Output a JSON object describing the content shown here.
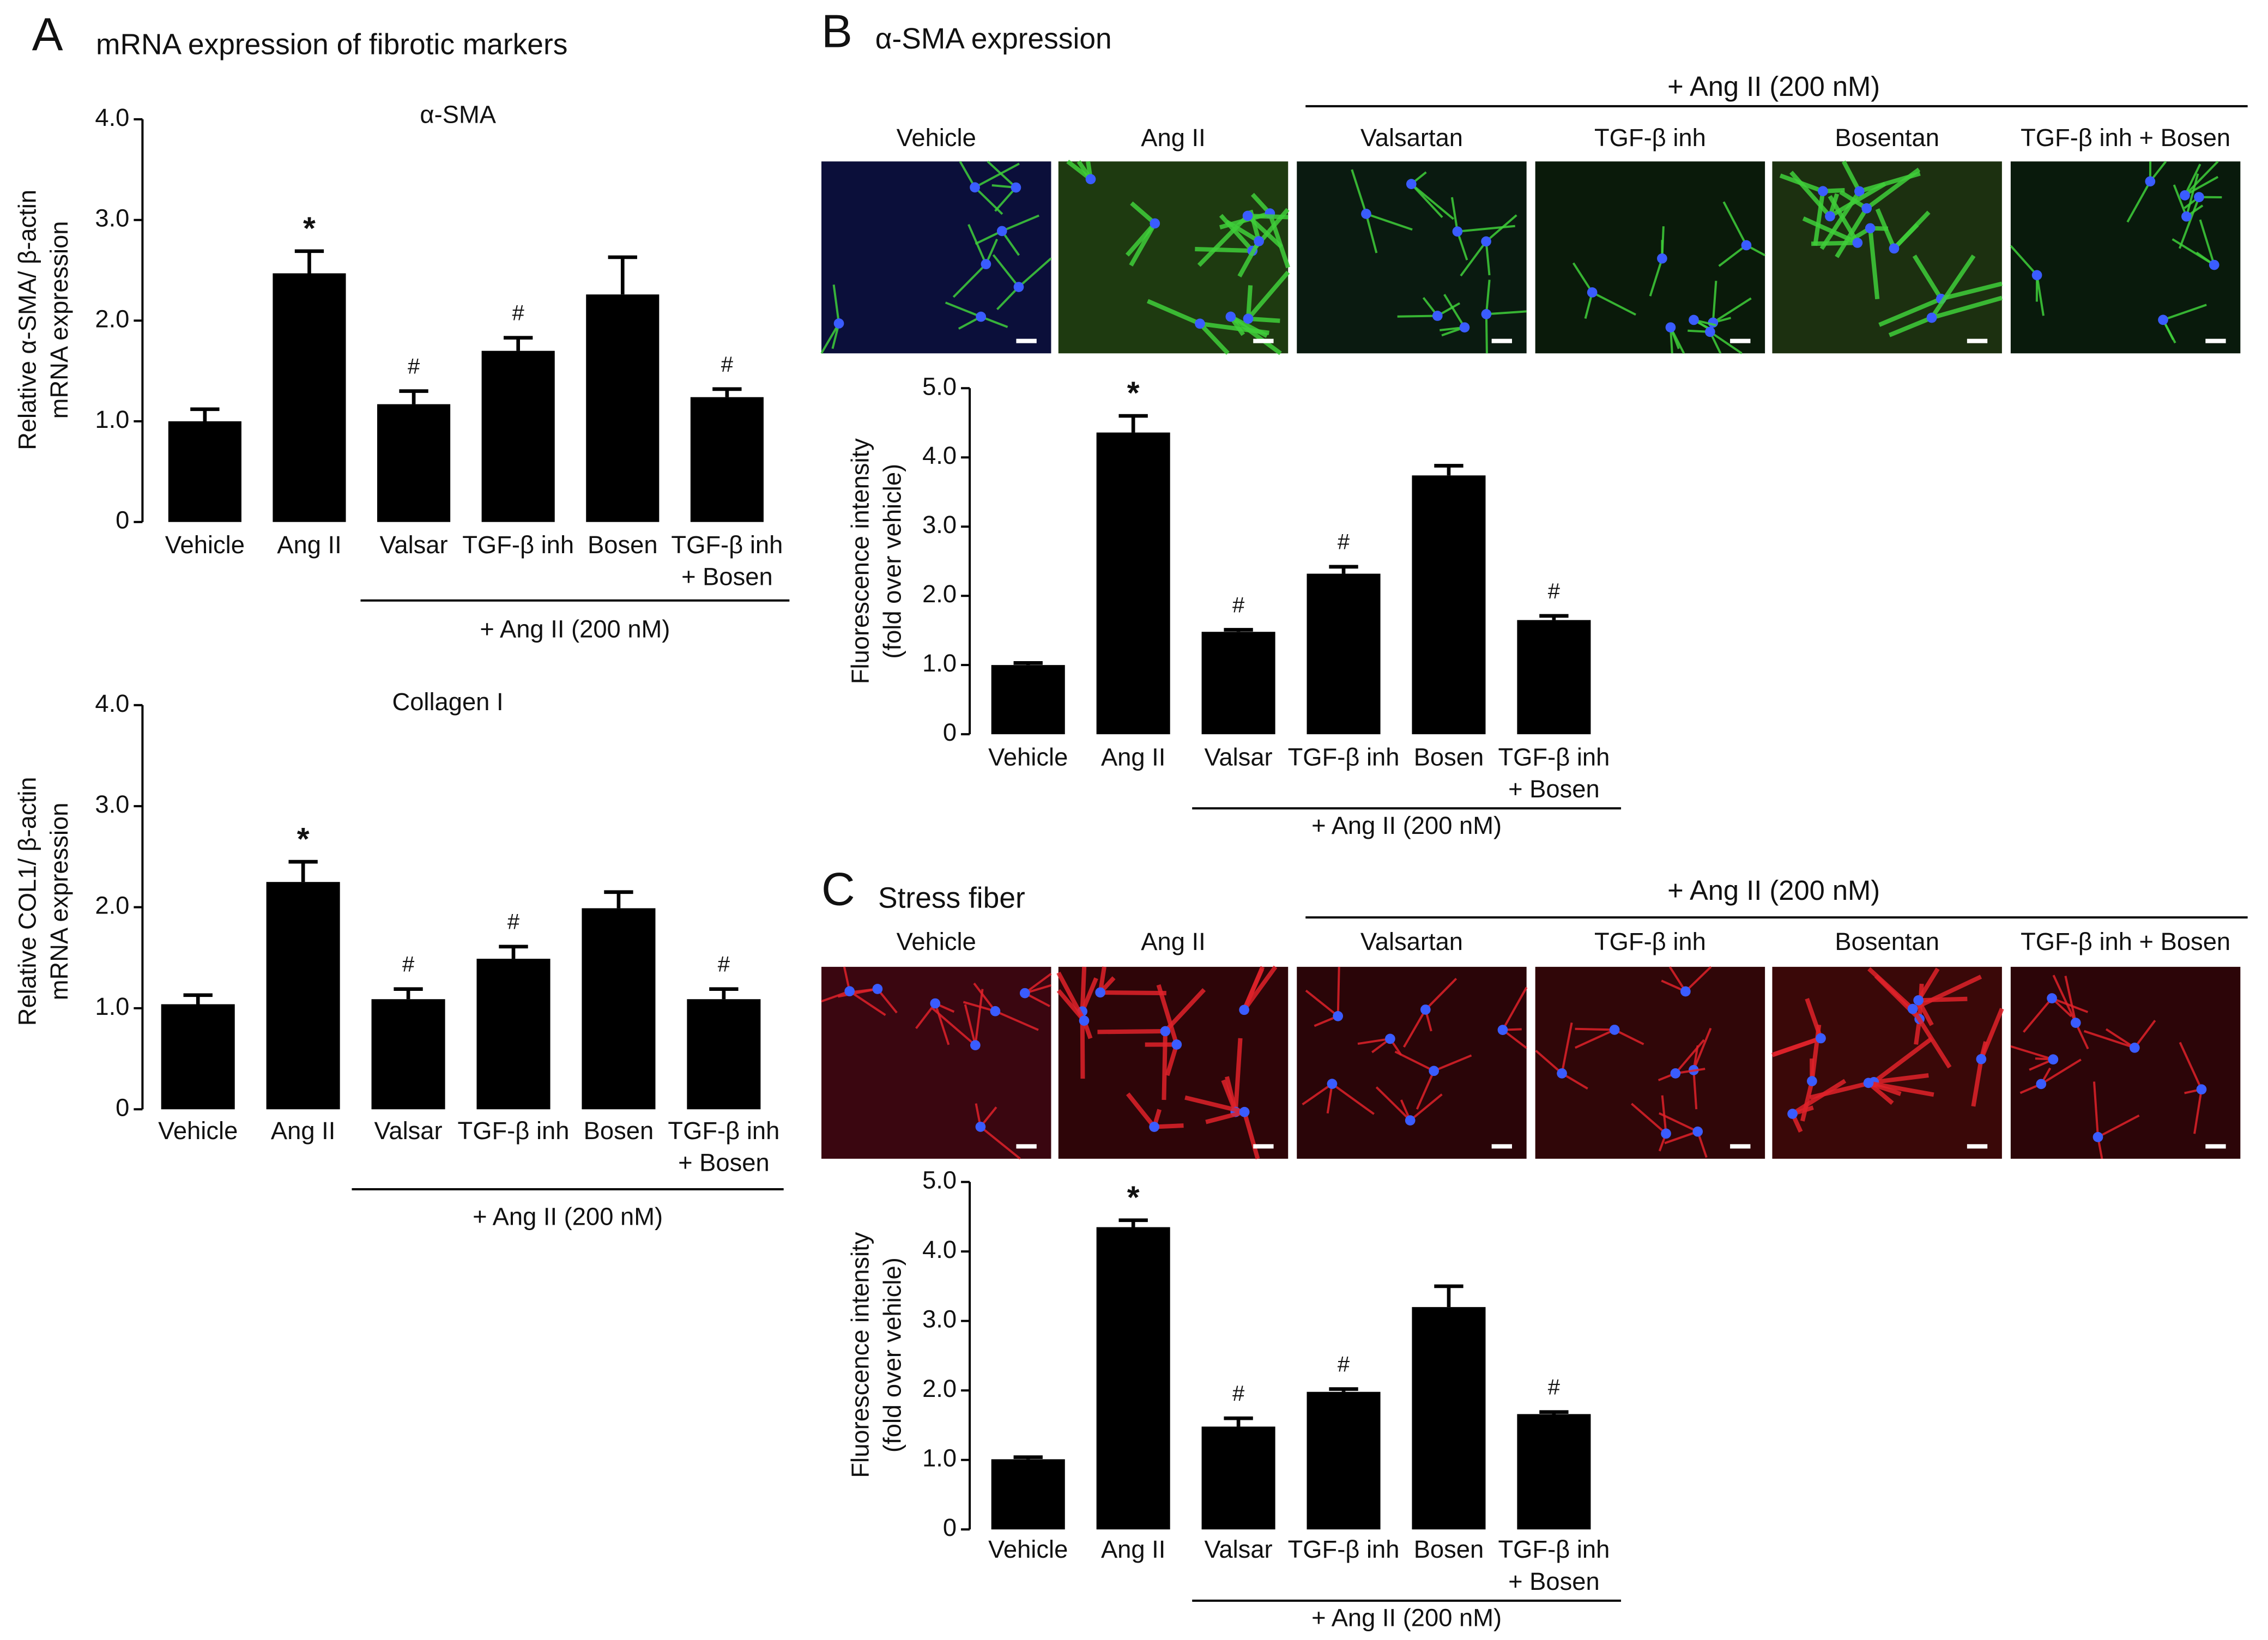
{
  "figure": {
    "panels": [
      {
        "letter": "A",
        "title": "mRNA expression of fibrotic markers"
      },
      {
        "letter": "B",
        "title": "α-SMA expression",
        "header": "+ Ang II (200 nM)",
        "image_labels": [
          "Vehicle",
          "Ang II",
          "Valsartan",
          "TGF-β inh",
          "Bosentan",
          "TGF-β inh + Bosen"
        ]
      },
      {
        "letter": "C",
        "title": "Stress fiber",
        "header": "+ Ang II (200 nM)",
        "image_labels": [
          "Vehicle",
          "Ang II",
          "Valsartan",
          "TGF-β inh",
          "Bosentan",
          "TGF-β inh + Bosen"
        ]
      }
    ]
  },
  "chart_data": [
    {
      "type": "bar",
      "title": "α-SMA",
      "y_label": [
        "Relative α-SMA/ β-actin",
        "mRNA expression"
      ],
      "categories": [
        [
          "Vehicle"
        ],
        [
          "Ang II"
        ],
        [
          "Valsar"
        ],
        [
          "TGF-β inh"
        ],
        [
          "Bosen"
        ],
        [
          "TGF-β inh",
          "+ Bosen"
        ]
      ],
      "group_label": "+ Ang II (200 nM)",
      "values": [
        1.0,
        2.47,
        1.17,
        1.7,
        2.26,
        1.24
      ],
      "errors": [
        0.12,
        0.22,
        0.13,
        0.13,
        0.37,
        0.08
      ],
      "annotations": [
        null,
        "*",
        "#",
        "#",
        null,
        "#"
      ],
      "color": "#000000",
      "ylim": [
        0,
        4
      ],
      "yticks": [
        0,
        {
          "value": 1,
          "label": "1.0"
        },
        {
          "value": 2,
          "label": "2.0"
        },
        {
          "value": 3,
          "label": "3.0"
        },
        {
          "value": 4,
          "label": "4.0"
        }
      ]
    },
    {
      "type": "bar",
      "title": "Collagen I",
      "y_label": [
        "Relative COL1/ β-actin",
        "mRNA expression"
      ],
      "categories": [
        [
          "Vehicle"
        ],
        [
          "Ang II"
        ],
        [
          "Valsar"
        ],
        [
          "TGF-β inh"
        ],
        [
          "Bosen"
        ],
        [
          "TGF-β inh",
          "+ Bosen"
        ]
      ],
      "group_label": "+ Ang II (200 nM)",
      "values": [
        1.04,
        2.25,
        1.09,
        1.49,
        1.99,
        1.09
      ],
      "errors": [
        0.09,
        0.2,
        0.1,
        0.12,
        0.16,
        0.1
      ],
      "annotations": [
        null,
        "*",
        "#",
        "#",
        null,
        "#"
      ],
      "color": "#000000",
      "ylim": [
        0,
        4
      ],
      "yticks": [
        0,
        {
          "value": 1,
          "label": "1.0"
        },
        {
          "value": 2,
          "label": "2.0"
        },
        {
          "value": 3,
          "label": "3.0"
        },
        {
          "value": 4,
          "label": "4.0"
        }
      ]
    },
    {
      "type": "bar",
      "y_label": [
        "Fluorescence  intensity",
        "(fold over vehicle)"
      ],
      "categories": [
        [
          "Vehicle"
        ],
        [
          "Ang II"
        ],
        [
          "Valsar"
        ],
        [
          "TGF-β inh"
        ],
        [
          "Bosen"
        ],
        [
          "TGF-β inh",
          "+ Bosen"
        ]
      ],
      "group_label": "+ Ang II (200 nM)",
      "values": [
        1.0,
        4.36,
        1.48,
        2.32,
        3.74,
        1.65
      ],
      "errors": [
        0.03,
        0.24,
        0.03,
        0.1,
        0.14,
        0.06
      ],
      "annotations": [
        null,
        "*",
        "#",
        "#",
        null,
        "#"
      ],
      "color": "#000000",
      "ylim": [
        0,
        5
      ],
      "yticks": [
        0,
        {
          "value": 1,
          "label": "1.0"
        },
        {
          "value": 2,
          "label": "2.0"
        },
        {
          "value": 3,
          "label": "3.0"
        },
        {
          "value": 4,
          "label": "4.0"
        },
        {
          "value": 5,
          "label": "5.0"
        }
      ]
    },
    {
      "type": "bar",
      "y_label": [
        "Fluorescence  intensity",
        "(fold over vehicle)"
      ],
      "categories": [
        [
          "Vehicle"
        ],
        [
          "Ang II"
        ],
        [
          "Valsar"
        ],
        [
          "TGF-β inh"
        ],
        [
          "Bosen"
        ],
        [
          "TGF-β inh",
          "+ Bosen"
        ]
      ],
      "group_label": "+ Ang II (200 nM)",
      "values": [
        1.01,
        4.35,
        1.48,
        1.98,
        3.2,
        1.66
      ],
      "errors": [
        0.03,
        0.1,
        0.12,
        0.04,
        0.3,
        0.03
      ],
      "annotations": [
        null,
        "*",
        "#",
        "#",
        null,
        "#"
      ],
      "color": "#000000",
      "ylim": [
        0,
        5
      ],
      "yticks": [
        0,
        {
          "value": 1,
          "label": "1.0"
        },
        {
          "value": 2,
          "label": "2.0"
        },
        {
          "value": 3,
          "label": "3.0"
        },
        {
          "value": 4,
          "label": "4.0"
        },
        {
          "value": 5,
          "label": "5.0"
        }
      ]
    }
  ]
}
